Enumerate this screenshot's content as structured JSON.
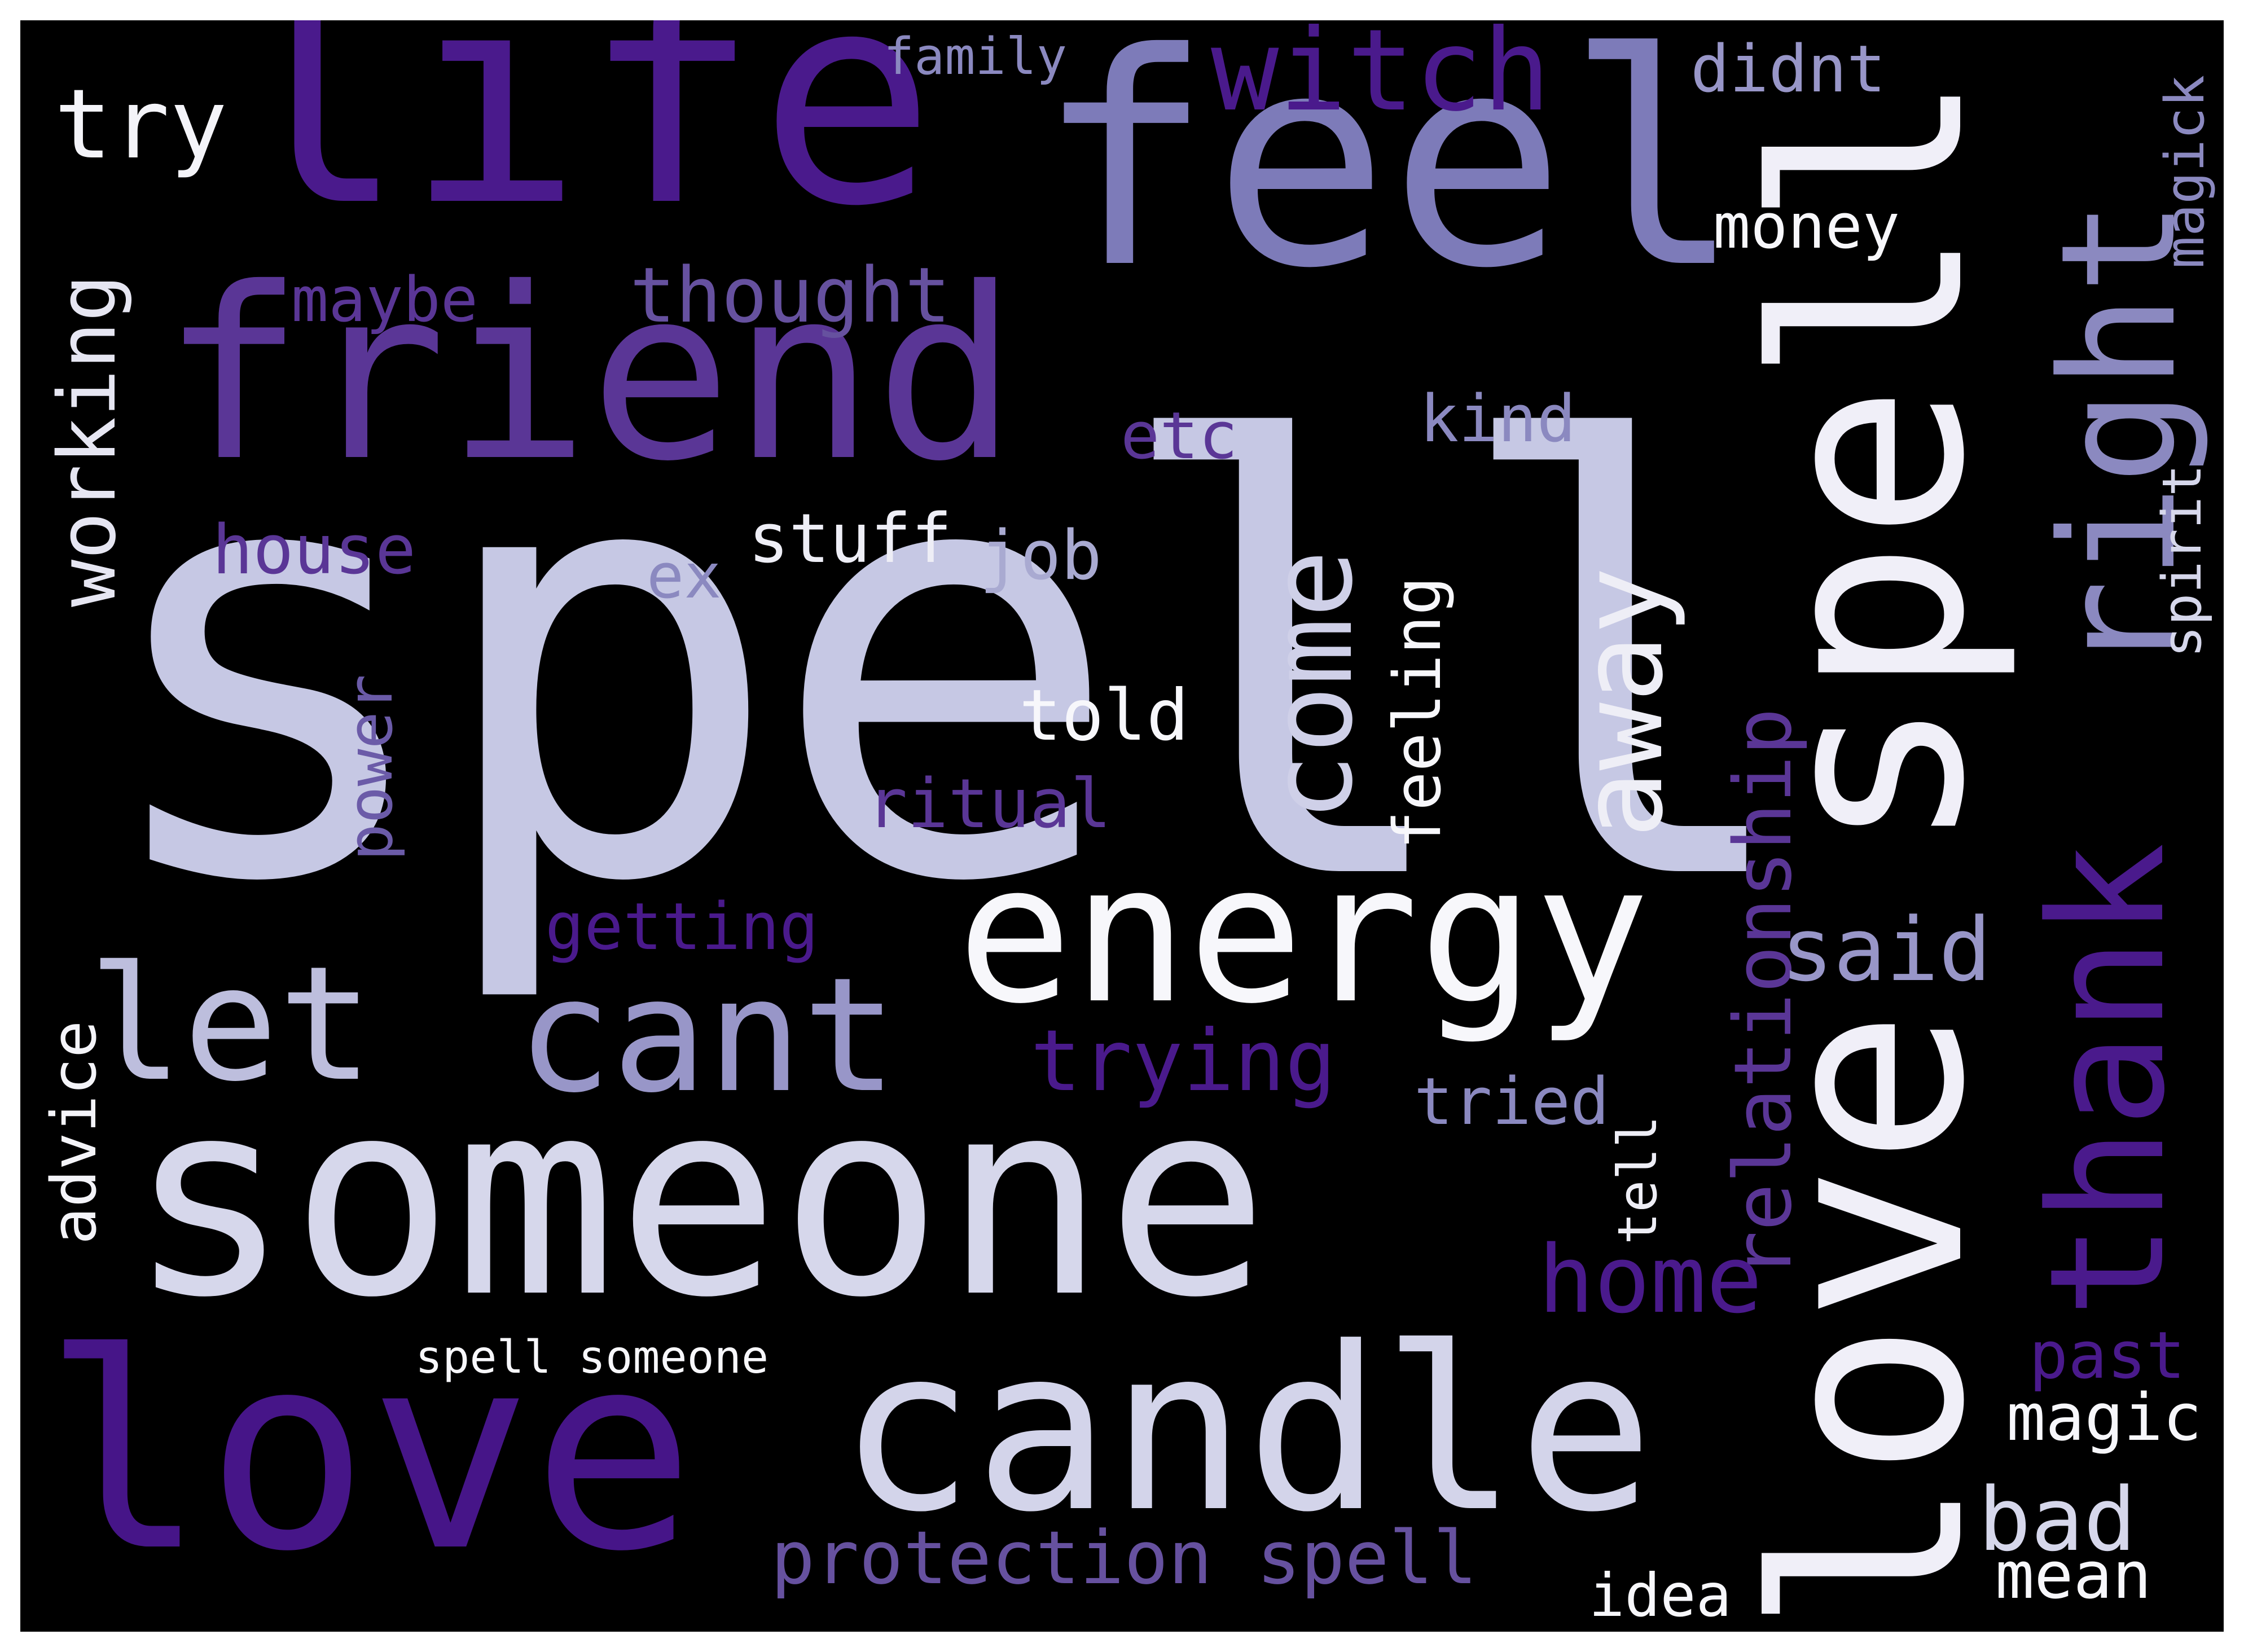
{
  "words": [
    {
      "text": "spell",
      "color": "#c6c8e4"
    },
    {
      "text": "life",
      "color": "#4a1a8c"
    },
    {
      "text": "feel",
      "color": "#7d7bb9"
    },
    {
      "text": "friend",
      "color": "#5a3696"
    },
    {
      "text": "love spell",
      "color": "#f0eff8"
    },
    {
      "text": "someone",
      "color": "#d6d7eb"
    },
    {
      "text": "love",
      "color": "#461588"
    },
    {
      "text": "candle",
      "color": "#d3d4ea"
    },
    {
      "text": "energy",
      "color": "#f7f7fb"
    },
    {
      "text": "cant",
      "color": "#9896c8"
    },
    {
      "text": "let",
      "color": "#bdbedd"
    },
    {
      "text": "right",
      "color": "#8b89c0"
    },
    {
      "text": "thank",
      "color": "#4a1a8c"
    },
    {
      "text": "witch",
      "color": "#4a1a8c"
    },
    {
      "text": "come",
      "color": "#cfd0e8"
    },
    {
      "text": "away",
      "color": "#eeeef6"
    },
    {
      "text": "relationship",
      "color": "#5a3696"
    },
    {
      "text": "try",
      "color": "#f4f4f9"
    },
    {
      "text": "working",
      "color": "#e6e6f2"
    },
    {
      "text": "thought",
      "color": "#66519f"
    },
    {
      "text": "maybe",
      "color": "#5a3696"
    },
    {
      "text": "family",
      "color": "#8b89c0"
    },
    {
      "text": "didnt",
      "color": "#9896c8"
    },
    {
      "text": "money",
      "color": "#f7f7fb"
    },
    {
      "text": "magick",
      "color": "#8b89c0"
    },
    {
      "text": "etc",
      "color": "#5a3696"
    },
    {
      "text": "kind",
      "color": "#8b89c0"
    },
    {
      "text": "house",
      "color": "#5a3696"
    },
    {
      "text": "stuff",
      "color": "#eeeef6"
    },
    {
      "text": "job",
      "color": "#a9aad1"
    },
    {
      "text": "ex",
      "color": "#8b89c0"
    },
    {
      "text": "feeling",
      "color": "#f7f7fb"
    },
    {
      "text": "spirit",
      "color": "#d6d7eb"
    },
    {
      "text": "power",
      "color": "#6b5ba8"
    },
    {
      "text": "told",
      "color": "#f7f7fb"
    },
    {
      "text": "ritual",
      "color": "#5a3696"
    },
    {
      "text": "getting",
      "color": "#4a1a8c"
    },
    {
      "text": "said",
      "color": "#9896c8"
    },
    {
      "text": "trying",
      "color": "#4a1a8c"
    },
    {
      "text": "tried",
      "color": "#8b89c0"
    },
    {
      "text": "advice",
      "color": "#f4f4f9"
    },
    {
      "text": "tell",
      "color": "#eeeef6"
    },
    {
      "text": "home",
      "color": "#4a1a8c"
    },
    {
      "text": "past",
      "color": "#4a1a8c"
    },
    {
      "text": "spell someone",
      "color": "#f7f7fb"
    },
    {
      "text": "magic",
      "color": "#f7f7fb"
    },
    {
      "text": "bad",
      "color": "#d6d7eb"
    },
    {
      "text": "protection spell",
      "color": "#66519f"
    },
    {
      "text": "idea",
      "color": "#f7f7fb"
    },
    {
      "text": "mean",
      "color": "#f7f7fb"
    }
  ]
}
